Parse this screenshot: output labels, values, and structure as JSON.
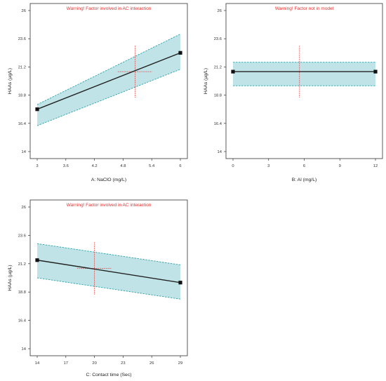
{
  "chart_data": [
    {
      "type": "line",
      "warning": "Warning! Factor involved in AC interaction",
      "xlabel": "A: NaClO (mg/L)",
      "ylabel": "HAAs  (µg/L)",
      "xlim": [
        3,
        6
      ],
      "ylim": [
        14,
        26
      ],
      "x_ticks": [
        "3",
        "3.6",
        "4.2",
        "4.8",
        "5.4",
        "6"
      ],
      "y_ticks": [
        "14",
        "16.4",
        "18.8",
        "21.2",
        "23.6",
        "26"
      ],
      "x": [
        3,
        6
      ],
      "y": [
        17.6,
        22.4
      ],
      "ci_lower": [
        16.2,
        21.0
      ],
      "ci_upper": [
        18.0,
        24.0
      ],
      "cross": [
        5.05,
        20.8
      ],
      "line_color": "#222222",
      "band_color": "#bfe3e6",
      "dash_color": "#2fa4ad",
      "cross_color": "#e8312f"
    },
    {
      "type": "line",
      "warning": "Warning! Factor not in model",
      "xlabel": "B: Al  (mg/L)",
      "ylabel": "HAAs  (µg/L)",
      "xlim": [
        0,
        12
      ],
      "ylim": [
        14,
        26
      ],
      "x_ticks": [
        "0",
        "3",
        "6",
        "9",
        "12"
      ],
      "y_ticks": [
        "14",
        "16.4",
        "18.8",
        "21.2",
        "23.6",
        "26"
      ],
      "x": [
        0,
        12
      ],
      "y": [
        20.8,
        20.8
      ],
      "ci_lower": [
        19.6,
        19.6
      ],
      "ci_upper": [
        21.6,
        21.6
      ],
      "cross": [
        5.6,
        20.8
      ],
      "line_color": "#222222",
      "band_color": "#bfe3e6",
      "dash_color": "#2fa4ad",
      "cross_color": "#e8312f"
    },
    {
      "type": "line",
      "warning": "Warning! Factor involved in AC interaction",
      "xlabel": "C: Contact time (Sec)",
      "ylabel": "HAAs  (µg/L)",
      "xlim": [
        14,
        29
      ],
      "ylim": [
        14,
        26
      ],
      "x_ticks": [
        "14",
        "17",
        "20",
        "23",
        "26",
        "29"
      ],
      "y_ticks": [
        "14",
        "16.4",
        "18.8",
        "21.2",
        "23.6",
        "26"
      ],
      "x": [
        14,
        29
      ],
      "y": [
        21.5,
        19.6
      ],
      "ci_lower": [
        20.0,
        18.2
      ],
      "ci_upper": [
        22.9,
        21.1
      ],
      "cross": [
        20.0,
        20.8
      ],
      "line_color": "#222222",
      "band_color": "#bfe3e6",
      "dash_color": "#2fa4ad",
      "cross_color": "#e8312f"
    }
  ]
}
